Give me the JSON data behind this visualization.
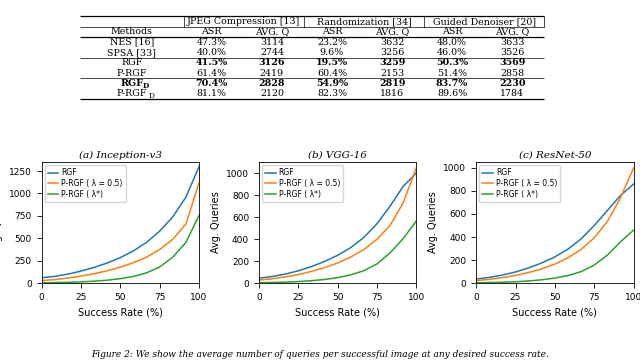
{
  "table": {
    "methods": [
      "NES [16]",
      "SPSA [33]",
      "RGF",
      "P-RGF",
      "RGF_D",
      "P-RGF_D"
    ],
    "bold_rows": [
      3,
      5
    ],
    "jpeg_asr": [
      "47.3%",
      "40.0%",
      "41.5%",
      "61.4%",
      "70.4%",
      "81.1%"
    ],
    "jpeg_avgq": [
      "3114",
      "2744",
      "3126",
      "2419",
      "2828",
      "2120"
    ],
    "rand_asr": [
      "23.2%",
      "9.6%",
      "19.5%",
      "60.4%",
      "54.9%",
      "82.3%"
    ],
    "rand_avgq": [
      "3632",
      "3256",
      "3259",
      "2153",
      "2819",
      "1816"
    ],
    "guided_asr": [
      "48.0%",
      "46.0%",
      "50.3%",
      "51.4%",
      "83.7%",
      "89.6%"
    ],
    "guided_avgq": [
      "3633",
      "3526",
      "3569",
      "2858",
      "2230",
      "1784"
    ]
  },
  "plot_colors": {
    "RGF": "#1f77b4",
    "P-RGF_05": "#ff7f0e",
    "P-RGF_star": "#2ca02c"
  },
  "inception_v3": {
    "rgf": [
      60,
      75,
      100,
      135,
      175,
      225,
      285,
      360,
      455,
      580,
      740,
      960,
      1300
    ],
    "prgf_05": [
      28,
      40,
      57,
      78,
      105,
      138,
      178,
      228,
      290,
      375,
      490,
      660,
      1120
    ],
    "prgf_star": [
      4,
      6,
      9,
      14,
      22,
      33,
      50,
      75,
      115,
      180,
      290,
      455,
      755
    ],
    "x": [
      0,
      8.33,
      16.67,
      25,
      33.33,
      41.67,
      50,
      58.33,
      66.67,
      75,
      83.33,
      91.67,
      100
    ],
    "ylim": [
      0,
      1350
    ],
    "yticks": [
      0,
      250,
      500,
      750,
      1000,
      1250
    ],
    "title": "(a) Inception-v3"
  },
  "vgg16": {
    "rgf": [
      45,
      60,
      82,
      112,
      150,
      197,
      253,
      323,
      415,
      540,
      700,
      880,
      1000
    ],
    "prgf_05": [
      28,
      40,
      57,
      78,
      106,
      141,
      183,
      237,
      305,
      398,
      525,
      730,
      1050
    ],
    "prgf_star": [
      4,
      6,
      9,
      14,
      22,
      33,
      50,
      75,
      113,
      175,
      275,
      405,
      565
    ],
    "x": [
      0,
      8.33,
      16.67,
      25,
      33.33,
      41.67,
      50,
      58.33,
      66.67,
      75,
      83.33,
      91.67,
      100
    ],
    "ylim": [
      0,
      1100
    ],
    "yticks": [
      0,
      200,
      400,
      600,
      800,
      1000
    ],
    "title": "(b) VGG-16"
  },
  "resnet50": {
    "rgf": [
      35,
      50,
      70,
      97,
      132,
      175,
      228,
      295,
      384,
      500,
      630,
      760,
      860
    ],
    "prgf_05": [
      22,
      33,
      48,
      67,
      92,
      124,
      165,
      220,
      293,
      393,
      535,
      740,
      1000
    ],
    "prgf_star": [
      3,
      5,
      8,
      12,
      19,
      29,
      44,
      66,
      100,
      157,
      243,
      358,
      460
    ],
    "x": [
      0,
      8.33,
      16.67,
      25,
      33.33,
      41.67,
      50,
      58.33,
      66.67,
      75,
      83.33,
      91.67,
      100
    ],
    "ylim": [
      0,
      1050
    ],
    "yticks": [
      0,
      200,
      400,
      600,
      800,
      1000
    ],
    "title": "(c) ResNet-50"
  },
  "legend_labels": [
    "RGF",
    "P-RGF ( λ = 0.5)",
    "P-RGF ( λ*)"
  ],
  "xlabel": "Success Rate (%)",
  "ylabel": "Avg. Queries",
  "xticks": [
    0,
    25,
    50,
    75,
    100
  ],
  "caption": "Figure 2: We show the average number of queries per successful image at any desired success rate."
}
